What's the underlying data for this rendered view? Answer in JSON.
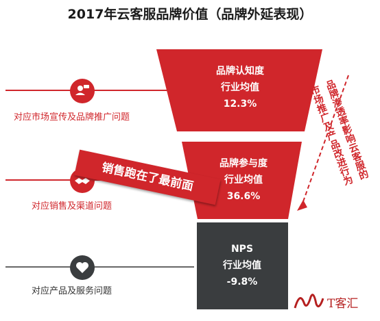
{
  "title": "2017年云客服品牌价值（品牌外延表现）",
  "rows": [
    {
      "label": "对应市场宣传及品牌推广问题",
      "icon": "person-chat-icon"
    },
    {
      "label": "对应销售及渠道问题",
      "icon": "handshake-icon"
    },
    {
      "label": "对应产品及服务问题",
      "icon": "heart-icon"
    }
  ],
  "funnel": [
    {
      "metric": "品牌认知度",
      "sublabel": "行业均值",
      "value": "12.3%",
      "color": "#d0262b"
    },
    {
      "metric": "品牌参与度",
      "sublabel": "行业均值",
      "value": "36.6%",
      "color": "#d0262b"
    },
    {
      "metric": "NPS",
      "sublabel": "行业均值",
      "value": "-9.8%",
      "color": "#3a3d3f"
    }
  ],
  "banner": "销售跑在了最前面",
  "side_note": {
    "line1": "品牌渗透率影响云客服的",
    "line2": "市场推广及产品改进行为"
  },
  "watermark": "T客汇",
  "colors": {
    "accent": "#d0262b",
    "dark": "#3a3d3f"
  }
}
